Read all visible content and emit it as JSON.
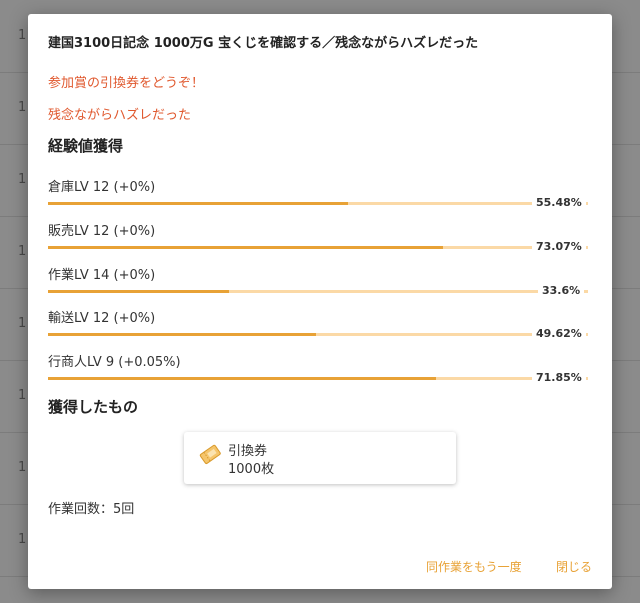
{
  "background": {
    "row_numbers": [
      "1",
      "1",
      "1",
      "1",
      "1",
      "1",
      "1",
      "1"
    ]
  },
  "dialog": {
    "title": "建国3100日記念 1000万G 宝くじを確認する／残念ながらハズレだった",
    "messages": [
      "参加賞の引換券をどうぞ！",
      "残念ながらハズレだった"
    ],
    "experience_heading": "経験値獲得",
    "levels": [
      {
        "label": "倉庫LV 12 (+0%)",
        "percent_text": "55.48%",
        "fraction": 0.5548
      },
      {
        "label": "販売LV 12 (+0%)",
        "percent_text": "73.07%",
        "fraction": 0.7307
      },
      {
        "label": "作業LV 14 (+0%)",
        "percent_text": "33.6%",
        "fraction": 0.336
      },
      {
        "label": "輸送LV 12 (+0%)",
        "percent_text": "49.62%",
        "fraction": 0.4962
      },
      {
        "label": "行商人LV 9 (+0.05%)",
        "percent_text": "71.85%",
        "fraction": 0.7185
      }
    ],
    "rewards_heading": "獲得したもの",
    "reward": {
      "icon": "ticket-icon",
      "name": "引換券",
      "quantity": "1000枚"
    },
    "work_count": "作業回数：5回",
    "buttons": {
      "repeat": "同作業をもう一度",
      "close": "閉じる"
    }
  },
  "colors": {
    "accent": "#e8a236",
    "bar_track": "#fbd9a6",
    "message": "#e0592f"
  }
}
